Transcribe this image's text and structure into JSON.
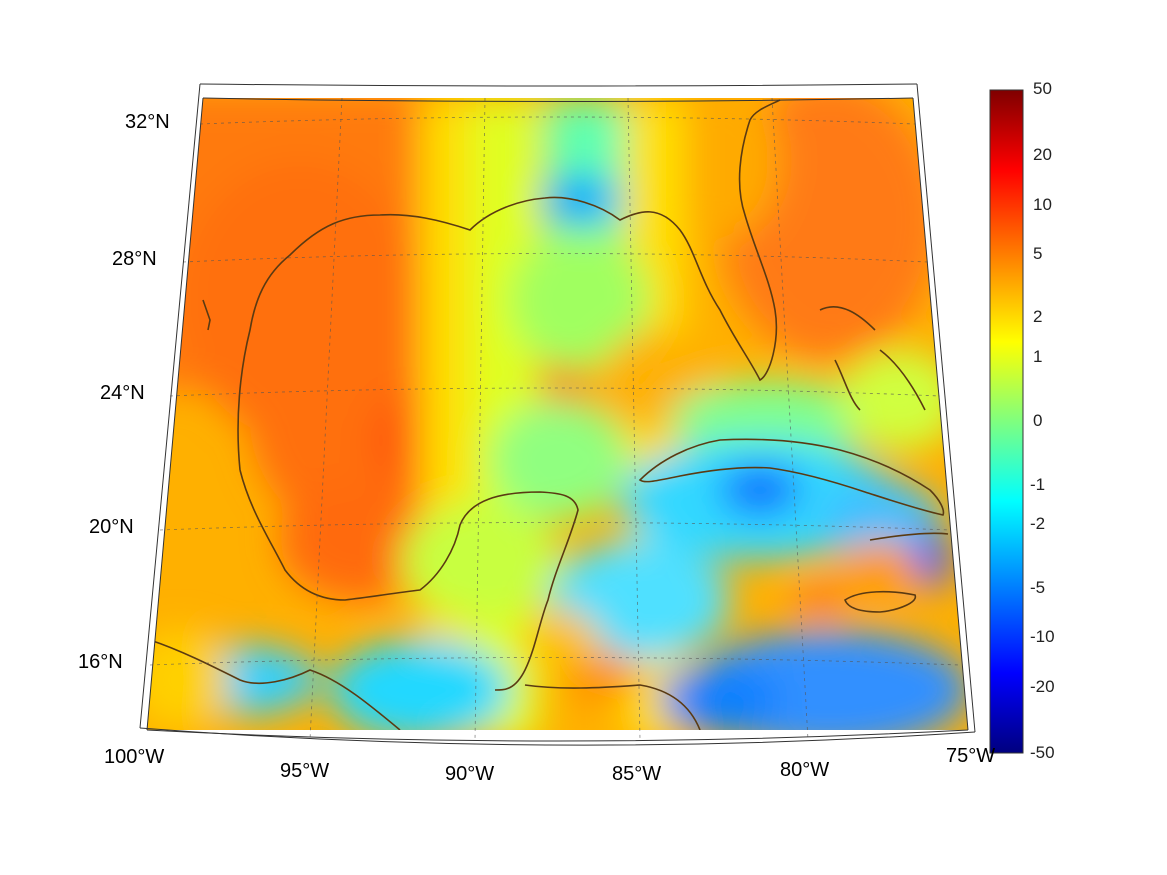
{
  "map": {
    "projection": "conic",
    "extent": {
      "lon_min": -100,
      "lon_max": -75,
      "lat_min": 14,
      "lat_max": 33
    },
    "lat_labels": [
      "32°N",
      "28°N",
      "24°N",
      "20°N",
      "16°N"
    ],
    "lon_labels": [
      "100°W",
      "95°W",
      "90°W",
      "85°W",
      "80°W",
      "75°W"
    ],
    "gridlines": true,
    "coastline_color": "#5a3a12"
  },
  "colorbar": {
    "colormap": "jet",
    "tick_labels": [
      "50",
      "20",
      "10",
      "5",
      "2",
      "1",
      "0",
      "-1",
      "-2",
      "-5",
      "-10",
      "-20",
      "-50"
    ]
  }
}
